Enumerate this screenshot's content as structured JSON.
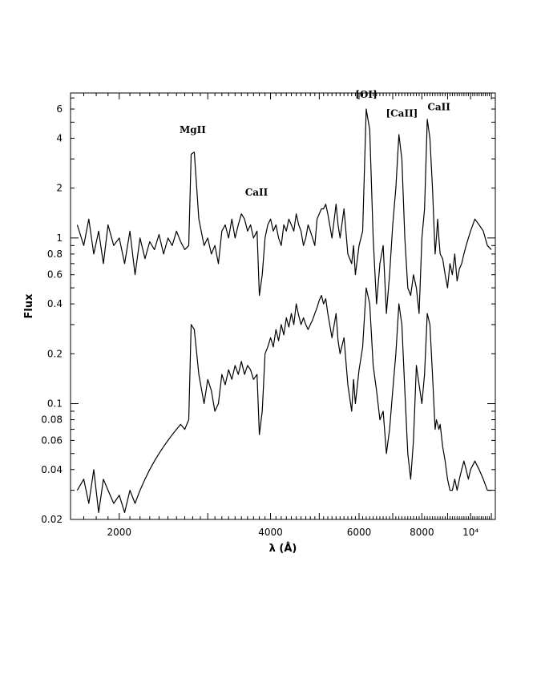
{
  "chart_data": {
    "type": "line",
    "title": "",
    "xlabel": "λ (Å)",
    "ylabel": "Flux",
    "xscale": "log",
    "yscale": "log",
    "xlim": [
      1600,
      11200
    ],
    "ylim": [
      0.02,
      7.5
    ],
    "grid": false,
    "x_ticks": [
      {
        "value": 2000,
        "label": "2000"
      },
      {
        "value": 4000,
        "label": "4000"
      },
      {
        "value": 6000,
        "label": "6000"
      },
      {
        "value": 8000,
        "label": "8000"
      },
      {
        "value": 10000,
        "label": "10⁴"
      }
    ],
    "y_ticks": [
      {
        "value": 6,
        "label": "6"
      },
      {
        "value": 4,
        "label": "4"
      },
      {
        "value": 2,
        "label": "2"
      },
      {
        "value": 1,
        "label": "1"
      },
      {
        "value": 0.8,
        "label": "0.8"
      },
      {
        "value": 0.6,
        "label": "0.6"
      },
      {
        "value": 0.4,
        "label": "0.4"
      },
      {
        "value": 0.2,
        "label": "0.2"
      },
      {
        "value": 0.1,
        "label": "0.1"
      },
      {
        "value": 0.08,
        "label": "0.08"
      },
      {
        "value": 0.06,
        "label": "0.06"
      },
      {
        "value": 0.04,
        "label": "0.04"
      },
      {
        "value": 0.02,
        "label": "0.02"
      }
    ],
    "annotations": [
      {
        "text": "MgII",
        "x": 2800,
        "y": 4.3
      },
      {
        "text": "CaII",
        "x": 3750,
        "y": 1.8
      },
      {
        "text": "[OI]",
        "x": 6200,
        "y": 7.0
      },
      {
        "text": "[CaII]",
        "x": 7300,
        "y": 5.4
      },
      {
        "text": "CaII",
        "x": 8650,
        "y": 5.9
      }
    ],
    "series": [
      {
        "x": [
          1650,
          1700,
          1740,
          1780,
          1820,
          1860,
          1900,
          1950,
          2000,
          2050,
          2100,
          2150,
          2200,
          2250,
          2300,
          2350,
          2400,
          2450,
          2500,
          2550,
          2600,
          2650,
          2700,
          2750,
          2780,
          2820,
          2880,
          2950,
          3000,
          3050,
          3100,
          3150,
          3200,
          3250,
          3300,
          3350,
          3400,
          3450,
          3500,
          3550,
          3600,
          3650,
          3700,
          3760,
          3800,
          3850,
          3900,
          3950,
          4000,
          4050,
          4100,
          4150,
          4200,
          4250,
          4300,
          4350,
          4400,
          4450,
          4500,
          4550,
          4600,
          4650,
          4700,
          4750,
          4800,
          4850,
          4900,
          4950,
          5000,
          5050,
          5100,
          5150,
          5200,
          5300,
          5400,
          5450,
          5500,
          5600,
          5700,
          5800,
          5850,
          5900,
          6000,
          6100,
          6200,
          6300,
          6400,
          6500,
          6600,
          6700,
          6800,
          6900,
          7000,
          7100,
          7200,
          7300,
          7400,
          7500,
          7600,
          7700,
          7800,
          7900,
          8000,
          8100,
          8200,
          8300,
          8400,
          8500,
          8550,
          8600,
          8650,
          8700,
          8800,
          8900,
          9000,
          9100,
          9200,
          9300,
          9400,
          9500,
          9600,
          9700,
          9800,
          9900,
          10000,
          10200,
          10400,
          10600,
          10800,
          11000
        ],
        "y": [
          1.2,
          0.9,
          1.3,
          0.8,
          1.1,
          0.7,
          1.2,
          0.9,
          1.0,
          0.7,
          1.1,
          0.6,
          1.0,
          0.75,
          0.95,
          0.85,
          1.05,
          0.8,
          1.0,
          0.9,
          1.1,
          0.95,
          0.85,
          0.9,
          3.2,
          3.3,
          1.3,
          0.9,
          1.0,
          0.8,
          0.9,
          0.7,
          1.1,
          1.2,
          1.0,
          1.3,
          1.0,
          1.2,
          1.4,
          1.3,
          1.1,
          1.2,
          1.0,
          1.1,
          0.45,
          0.6,
          1.0,
          1.2,
          1.3,
          1.1,
          1.2,
          1.0,
          0.9,
          1.2,
          1.1,
          1.3,
          1.2,
          1.1,
          1.4,
          1.2,
          1.1,
          0.9,
          1.0,
          1.2,
          1.1,
          1.0,
          0.9,
          1.3,
          1.4,
          1.5,
          1.5,
          1.6,
          1.4,
          1.0,
          1.6,
          1.2,
          1.0,
          1.5,
          0.8,
          0.7,
          0.9,
          0.6,
          0.9,
          1.1,
          6.0,
          4.5,
          1.0,
          0.4,
          0.7,
          0.9,
          0.35,
          0.6,
          1.2,
          2.0,
          4.2,
          3.0,
          1.0,
          0.5,
          0.45,
          0.6,
          0.5,
          0.35,
          1.0,
          1.5,
          5.2,
          4.0,
          2.0,
          0.8,
          1.0,
          1.3,
          1.0,
          0.8,
          0.75,
          0.6,
          0.5,
          0.7,
          0.6,
          0.8,
          0.55,
          0.65,
          0.7,
          0.8,
          0.9,
          1.0,
          1.1,
          1.3,
          1.2,
          1.1,
          0.9,
          0.85
        ]
      },
      {
        "x": [
          1650,
          1700,
          1740,
          1780,
          1820,
          1860,
          1900,
          1950,
          2000,
          2050,
          2100,
          2150,
          2200,
          2250,
          2300,
          2350,
          2400,
          2450,
          2500,
          2550,
          2600,
          2650,
          2700,
          2750,
          2780,
          2820,
          2880,
          2950,
          3000,
          3050,
          3100,
          3150,
          3200,
          3250,
          3300,
          3350,
          3400,
          3450,
          3500,
          3550,
          3600,
          3650,
          3700,
          3760,
          3800,
          3850,
          3900,
          3950,
          4000,
          4050,
          4100,
          4150,
          4200,
          4250,
          4300,
          4350,
          4400,
          4450,
          4500,
          4550,
          4600,
          4650,
          4700,
          4750,
          4800,
          4850,
          4900,
          4950,
          5000,
          5050,
          5100,
          5150,
          5200,
          5300,
          5400,
          5450,
          5500,
          5600,
          5700,
          5800,
          5850,
          5900,
          6000,
          6100,
          6200,
          6300,
          6400,
          6500,
          6600,
          6700,
          6800,
          6900,
          7000,
          7100,
          7200,
          7300,
          7400,
          7500,
          7600,
          7700,
          7800,
          7900,
          8000,
          8100,
          8200,
          8300,
          8400,
          8500,
          8550,
          8600,
          8650,
          8700,
          8800,
          8900,
          9000,
          9100,
          9200,
          9300,
          9400,
          9500,
          9600,
          9700,
          9800,
          9900,
          10000,
          10200,
          10400,
          10600,
          10800,
          11000
        ],
        "y": [
          0.03,
          0.035,
          0.025,
          0.04,
          0.022,
          0.035,
          0.03,
          0.025,
          0.028,
          0.022,
          0.03,
          0.025,
          0.03,
          0.035,
          0.04,
          0.045,
          0.05,
          0.055,
          0.06,
          0.065,
          0.07,
          0.075,
          0.07,
          0.08,
          0.3,
          0.28,
          0.15,
          0.1,
          0.14,
          0.12,
          0.09,
          0.1,
          0.15,
          0.13,
          0.16,
          0.14,
          0.17,
          0.15,
          0.18,
          0.15,
          0.17,
          0.16,
          0.14,
          0.15,
          0.065,
          0.09,
          0.2,
          0.22,
          0.25,
          0.22,
          0.28,
          0.24,
          0.3,
          0.26,
          0.33,
          0.29,
          0.35,
          0.3,
          0.4,
          0.34,
          0.3,
          0.33,
          0.3,
          0.28,
          0.3,
          0.32,
          0.35,
          0.38,
          0.42,
          0.45,
          0.4,
          0.43,
          0.35,
          0.25,
          0.35,
          0.24,
          0.2,
          0.25,
          0.13,
          0.09,
          0.14,
          0.1,
          0.16,
          0.22,
          0.5,
          0.4,
          0.17,
          0.12,
          0.08,
          0.09,
          0.05,
          0.07,
          0.12,
          0.2,
          0.4,
          0.3,
          0.12,
          0.05,
          0.035,
          0.06,
          0.17,
          0.13,
          0.1,
          0.15,
          0.35,
          0.3,
          0.15,
          0.07,
          0.08,
          0.075,
          0.07,
          0.075,
          0.055,
          0.045,
          0.035,
          0.03,
          0.03,
          0.035,
          0.03,
          0.035,
          0.04,
          0.045,
          0.04,
          0.035,
          0.04,
          0.045,
          0.04,
          0.035,
          0.03,
          0.03
        ]
      }
    ]
  }
}
